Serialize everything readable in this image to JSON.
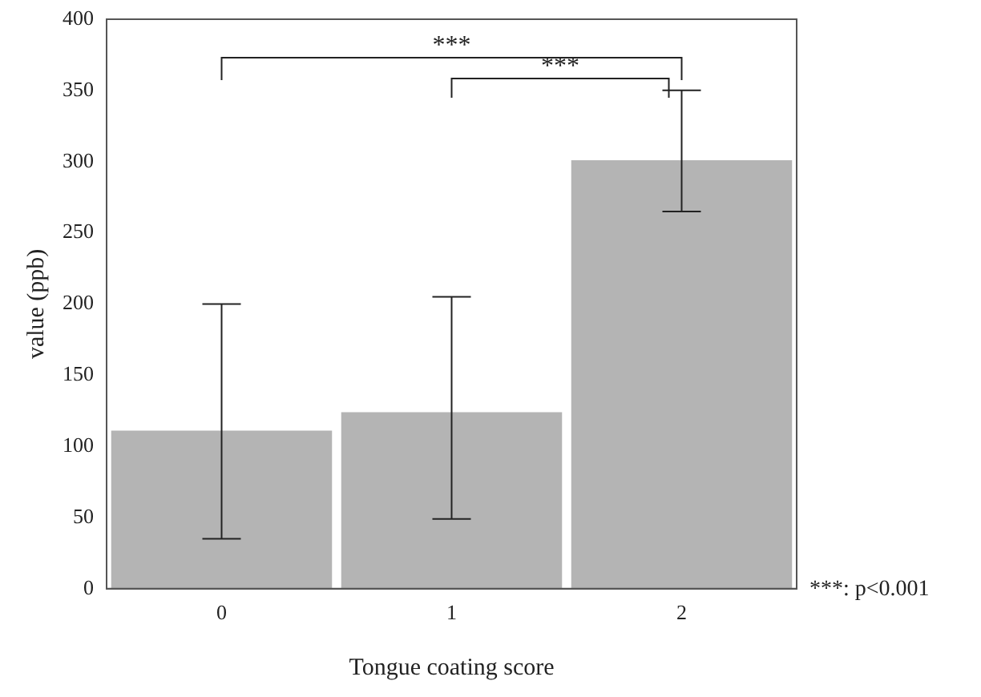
{
  "chart_data": {
    "type": "bar",
    "xlabel": "Tongue coating score",
    "ylabel": "value (ppb)",
    "categories": [
      "0",
      "1",
      "2"
    ],
    "values": [
      111,
      124,
      301
    ],
    "errors": [
      [
        35,
        200
      ],
      [
        49,
        205
      ],
      [
        265,
        350
      ]
    ],
    "color": "#b4b4b4",
    "ylim": [
      0,
      400
    ],
    "yticks": [
      0,
      50,
      100,
      150,
      200,
      250,
      300,
      350,
      400
    ],
    "grid": false,
    "legend": false,
    "annotations": [
      "***",
      "***",
      "***: p<0.001"
    ]
  }
}
